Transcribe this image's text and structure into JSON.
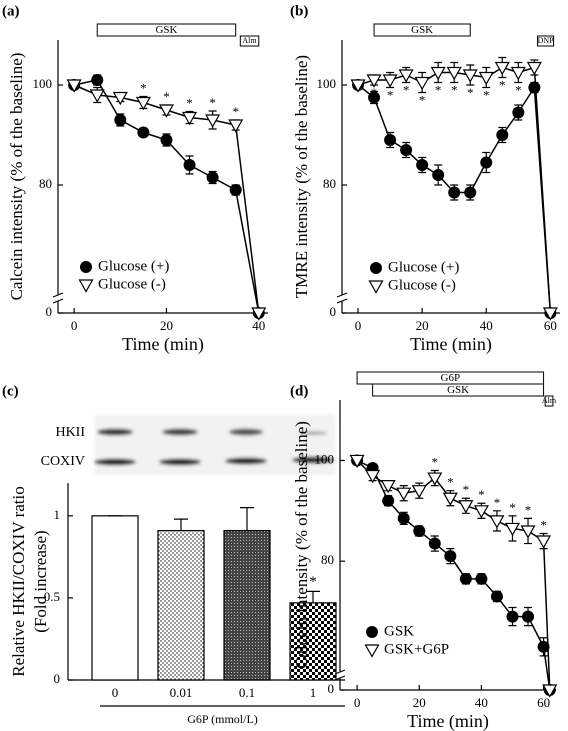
{
  "chart_data": [
    {
      "type": "line",
      "panel_label": "(a)",
      "x_label": "Time (min)",
      "y_label": "Calcein intensity (% of the baseline)",
      "x": [
        0,
        5,
        10,
        15,
        20,
        25,
        30,
        35,
        40
      ],
      "series": [
        {
          "name": "Glucose (+)",
          "color": "#000000",
          "marker": "circle",
          "values": [
            100,
            101,
            93,
            90.5,
            89,
            84,
            81.5,
            79,
            0
          ],
          "errors": [
            0,
            1,
            1.2,
            0.8,
            1.2,
            1.8,
            1.2,
            1,
            0
          ]
        },
        {
          "name": "Glucose (-)",
          "color": "#000000",
          "marker": "triangle-down",
          "values": [
            100,
            98,
            97.5,
            96.5,
            95,
            93.5,
            93,
            92,
            0
          ],
          "errors": [
            0,
            1.5,
            0.8,
            1.2,
            1,
            1.2,
            1.8,
            1,
            0
          ]
        }
      ],
      "xlim": [
        -3.5,
        42
      ],
      "xticks": [
        0,
        20,
        40
      ],
      "ylim": [
        0,
        109
      ],
      "yticks": [
        0,
        80,
        100
      ],
      "ybreak": [
        5,
        58
      ],
      "bars_above": [
        {
          "label": "GSK",
          "start": 5,
          "end": 35
        },
        {
          "label": "Alm",
          "start": 36,
          "end": 40
        }
      ],
      "significance": {
        "label": "*",
        "series": 1,
        "position": "above",
        "x": [
          15,
          20,
          25,
          30,
          35
        ]
      },
      "legend": "lower left"
    },
    {
      "type": "line",
      "panel_label": "(b)",
      "x_label": "Time (min)",
      "y_label": "TMRE intensity (% of the baseline)",
      "x": [
        0,
        5,
        10,
        15,
        20,
        25,
        30,
        35,
        40,
        45,
        50,
        55,
        60
      ],
      "series": [
        {
          "name": "Glucose (+)",
          "color": "#000000",
          "marker": "circle",
          "values": [
            100,
            97.5,
            89,
            87,
            84,
            82,
            78.5,
            78.5,
            84.5,
            90,
            94.5,
            99.5,
            0
          ],
          "errors": [
            0,
            1.2,
            1.5,
            1.5,
            1.5,
            2,
            1.5,
            1.5,
            2,
            1.5,
            1.5,
            1,
            0
          ]
        },
        {
          "name": "Glucose (-)",
          "color": "#000000",
          "marker": "triangle-down",
          "values": [
            100,
            101,
            101,
            102,
            100.5,
            102.5,
            102.5,
            102,
            101.5,
            103.5,
            102.5,
            103.5,
            0
          ],
          "errors": [
            0,
            1,
            1.5,
            1.5,
            2,
            2,
            2,
            2,
            2,
            2,
            2,
            1.5,
            0
          ]
        }
      ],
      "xlim": [
        -5,
        63
      ],
      "xticks": [
        0,
        20,
        40,
        60
      ],
      "ylim": [
        0,
        109
      ],
      "yticks": [
        0,
        80,
        100
      ],
      "ybreak": [
        5,
        58
      ],
      "bars_above": [
        {
          "label": "GSK",
          "start": 5,
          "end": 35
        },
        {
          "label": "DNP",
          "start": 56,
          "end": 61
        }
      ],
      "significance": {
        "label": "*",
        "series": 1,
        "position": "below",
        "x": [
          5,
          10,
          15,
          20,
          25,
          30,
          35,
          40,
          45,
          50
        ]
      },
      "legend": "lower left"
    },
    {
      "type": "bar",
      "panel_label": "(c)",
      "x_label": "G6P (mmol/L)",
      "y_label": [
        "Relative HKII/COXIV ratio",
        "(Fold increase)"
      ],
      "categories": [
        "0",
        "0.01",
        "0.1",
        "1"
      ],
      "values": [
        1,
        0.91,
        0.91,
        0.47
      ],
      "errors": [
        0,
        0.07,
        0.14,
        0.07
      ],
      "patterns": [
        "none",
        "dots",
        "dense",
        "checker"
      ],
      "ylim": [
        0,
        1.2
      ],
      "yticks": [
        0,
        0.5,
        1
      ],
      "blot_labels": [
        "HKII",
        "COXIV"
      ],
      "significance": {
        "label": "*",
        "indices": [
          3
        ]
      }
    },
    {
      "type": "line",
      "panel_label": "(d)",
      "x_label": "Time (min)",
      "y_label": "Calcein intensity (% of the baseline)",
      "x": [
        0,
        5,
        10,
        15,
        20,
        25,
        30,
        35,
        40,
        45,
        50,
        55,
        60,
        62
      ],
      "series": [
        {
          "name": "GSK",
          "color": "#000000",
          "marker": "circle",
          "values": [
            100,
            98.5,
            92,
            88.5,
            86,
            83.5,
            81,
            76.5,
            76.5,
            73,
            69,
            69,
            63,
            0
          ],
          "errors": [
            0,
            0.8,
            1,
            1.2,
            1,
            1.5,
            1.5,
            1,
            1,
            1,
            1.8,
            1.8,
            1.8,
            0
          ]
        },
        {
          "name": "GSK+G6P",
          "color": "#000000",
          "marker": "triangle-down",
          "values": [
            100,
            97,
            95,
            93.5,
            94,
            96.5,
            92.5,
            91,
            90,
            88,
            86.5,
            86,
            84,
            0
          ],
          "errors": [
            0,
            1,
            1,
            1.5,
            1.5,
            1.5,
            1.5,
            1.5,
            1.5,
            2,
            2.5,
            2.5,
            1.5,
            0
          ]
        }
      ],
      "xlim": [
        -5.5,
        64
      ],
      "xticks": [
        0,
        20,
        40,
        60
      ],
      "ylim": [
        0,
        112
      ],
      "yticks": [
        0,
        80,
        100
      ],
      "ybreak": [
        5,
        58
      ],
      "bars_above": [
        {
          "label": "G6P",
          "start": 0,
          "end": 60
        },
        {
          "label": "GSK",
          "start": 5,
          "end": 60
        },
        {
          "label": "Alm",
          "start": 60.5,
          "end": 63
        }
      ],
      "significance": {
        "label": "*",
        "series": 1,
        "position": "above",
        "x": [
          25,
          30,
          35,
          40,
          45,
          50,
          55,
          60
        ]
      },
      "legend": "lower left"
    }
  ]
}
